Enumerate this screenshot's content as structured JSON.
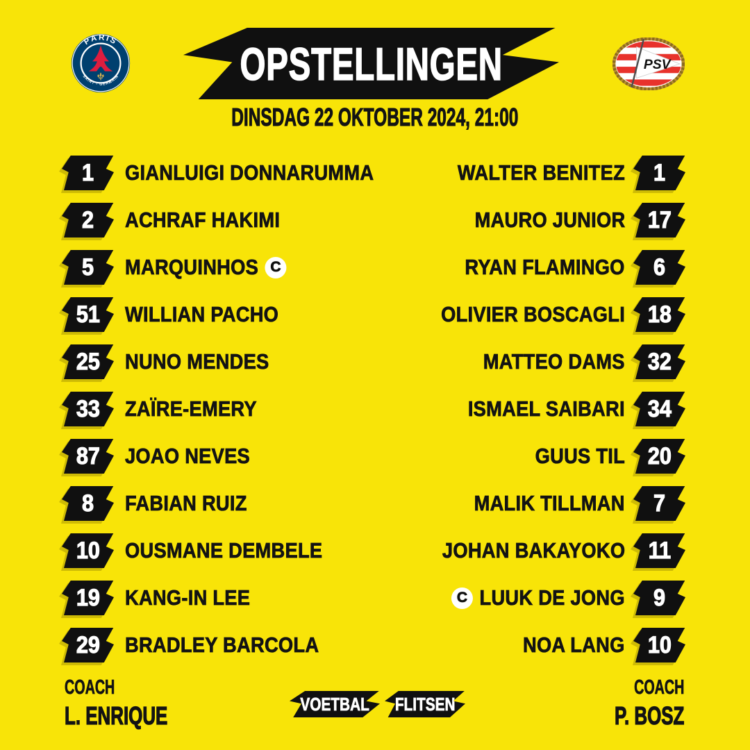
{
  "colors": {
    "background": "#F8E408",
    "banner_black": "#101010",
    "white": "#FFFFFF",
    "text_black": "#131313",
    "psg_blue": "#00406F",
    "psg_red": "#DF1D3F",
    "psv_red": "#E8322C",
    "gold": "#C9A347"
  },
  "header": {
    "title": "OPSTELLINGEN",
    "datetime": "DINSDAG 22 OKTOBER 2024, 21:00",
    "home_crest": {
      "top_text": "PARIS",
      "bottom_text": "SAINT - GERMAIN"
    },
    "away_crest": {
      "text": "PSV"
    }
  },
  "captain_symbol": "C",
  "home": {
    "coach_label": "COACH",
    "coach_name": "L. ENRIQUE",
    "players": [
      {
        "number": "1",
        "name": "GIANLUIGI DONNARUMMA",
        "captain": false
      },
      {
        "number": "2",
        "name": "ACHRAF HAKIMI",
        "captain": false
      },
      {
        "number": "5",
        "name": "MARQUINHOS",
        "captain": true
      },
      {
        "number": "51",
        "name": "WILLIAN PACHO",
        "captain": false
      },
      {
        "number": "25",
        "name": "NUNO MENDES",
        "captain": false
      },
      {
        "number": "33",
        "name": "ZAÏRE-EMERY",
        "captain": false
      },
      {
        "number": "87",
        "name": "JOAO NEVES",
        "captain": false
      },
      {
        "number": "8",
        "name": "FABIAN RUIZ",
        "captain": false
      },
      {
        "number": "10",
        "name": "OUSMANE DEMBELE",
        "captain": false
      },
      {
        "number": "19",
        "name": "KANG-IN LEE",
        "captain": false
      },
      {
        "number": "29",
        "name": "BRADLEY BARCOLA",
        "captain": false
      }
    ]
  },
  "away": {
    "coach_label": "COACH",
    "coach_name": "P. BOSZ",
    "players": [
      {
        "number": "1",
        "name": "WALTER BENITEZ",
        "captain": false
      },
      {
        "number": "17",
        "name": "MAURO JUNIOR",
        "captain": false
      },
      {
        "number": "6",
        "name": "RYAN FLAMINGO",
        "captain": false
      },
      {
        "number": "18",
        "name": "OLIVIER BOSCAGLI",
        "captain": false
      },
      {
        "number": "32",
        "name": "MATTEO DAMS",
        "captain": false
      },
      {
        "number": "34",
        "name": "ISMAEL SAIBARI",
        "captain": false
      },
      {
        "number": "20",
        "name": "GUUS TIL",
        "captain": false
      },
      {
        "number": "7",
        "name": "MALIK TILLMAN",
        "captain": false
      },
      {
        "number": "11",
        "name": "JOHAN BAKAYOKO",
        "captain": false
      },
      {
        "number": "9",
        "name": "LUUK DE JONG",
        "captain": true
      },
      {
        "number": "10",
        "name": "NOA LANG",
        "captain": false
      }
    ]
  },
  "footer": {
    "brand_left": "VOETBAL",
    "brand_right": "FLITSEN"
  }
}
